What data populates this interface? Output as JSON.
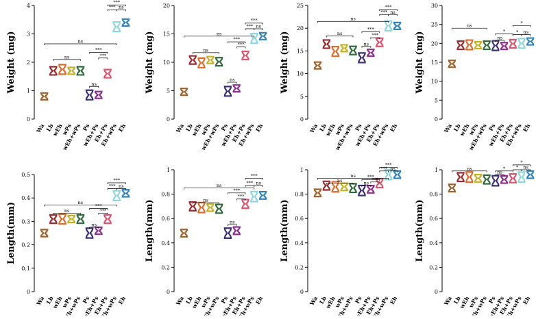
{
  "categories": [
    "Wa",
    "Lb",
    "wEh",
    "wPs",
    "wEh+wPs",
    "Ps",
    "wEh+Ps",
    "Eh+Ps",
    "Eh+wPs",
    "Eh"
  ],
  "colors": [
    "#a0622d",
    "#9c2a2e",
    "#e06b2a",
    "#c8b11f",
    "#2f6a3b",
    "#3b2f74",
    "#8c2f8c",
    "#e0536c",
    "#8ed7de",
    "#3182bd"
  ],
  "chart_data": [
    {
      "type": "violin",
      "metric": "weight",
      "ylabel": "Weight (mg)",
      "ylim": [
        0,
        4
      ],
      "ticks": [
        0,
        1,
        2,
        3,
        4
      ],
      "values": [
        0.8,
        1.7,
        1.75,
        1.7,
        1.7,
        0.85,
        0.85,
        1.6,
        3.25,
        3.4
      ],
      "annotations": [
        {
          "from": "Wa",
          "to": "Eh+wPs",
          "text": "ns",
          "y": 2.65
        },
        {
          "from": "Lb",
          "to": "wEh+wPs",
          "text": "ns",
          "y": 2.1
        },
        {
          "from": "Ps",
          "to": "wEh+Ps",
          "text": "ns",
          "y": 1.15
        },
        {
          "from": "Ps",
          "to": "Eh+Ps",
          "text": "***",
          "y": 2.35
        },
        {
          "from": "wEh+Ps",
          "to": "Eh+Ps",
          "text": "***",
          "y": 2.15
        },
        {
          "from": "Eh+Ps",
          "to": "Eh+wPs",
          "text": "***",
          "y": 3.85
        },
        {
          "from": "Eh+Ps",
          "to": "Eh",
          "text": "***",
          "y": 4.02
        },
        {
          "from": "Eh+wPs",
          "to": "Eh",
          "text": "ns",
          "y": 3.85
        }
      ]
    },
    {
      "type": "violin",
      "metric": "weight",
      "ylabel": "Weight (mg)",
      "ylim": [
        0,
        20
      ],
      "ticks": [
        0,
        5,
        10,
        15,
        20
      ],
      "values": [
        4.8,
        10.4,
        9.9,
        10.4,
        10.1,
        4.9,
        5.4,
        11.2,
        14.2,
        14.6
      ],
      "annotations": [
        {
          "from": "Wa",
          "to": "Eh+wPs",
          "text": "ns",
          "y": 14.6
        },
        {
          "from": "Lb",
          "to": "wEh+wPs",
          "text": "ns",
          "y": 11.7
        },
        {
          "from": "Ps",
          "to": "wEh+Ps",
          "text": "ns",
          "y": 6.5
        },
        {
          "from": "Ps",
          "to": "Eh+Ps",
          "text": "***",
          "y": 13.6
        },
        {
          "from": "wEh+Ps",
          "to": "Eh+Ps",
          "text": "***",
          "y": 12.7
        },
        {
          "from": "Eh+Ps",
          "to": "Eh+wPs",
          "text": "***",
          "y": 15.9
        },
        {
          "from": "Eh+Ps",
          "to": "Eh",
          "text": "***",
          "y": 16.9
        },
        {
          "from": "Eh+wPs",
          "to": "Eh",
          "text": "ns",
          "y": 15.9
        }
      ]
    },
    {
      "type": "violin",
      "metric": "weight",
      "ylabel": "Weight (mg)",
      "ylim": [
        0,
        25
      ],
      "ticks": [
        0,
        5,
        10,
        15,
        20,
        25
      ],
      "values": [
        11.8,
        16.5,
        14.9,
        15.6,
        15.1,
        13.5,
        14.6,
        16.9,
        20.5,
        20.5
      ],
      "annotations": [
        {
          "from": "Wa",
          "to": "Eh+wPs",
          "text": "ns",
          "y": 21.5
        },
        {
          "from": "Lb",
          "to": "wEh+wPs",
          "text": "ns",
          "y": 18.3
        },
        {
          "from": "Ps",
          "to": "wEh+Ps",
          "text": "ns",
          "y": 16.0
        },
        {
          "from": "Ps",
          "to": "Eh+Ps",
          "text": "***",
          "y": 19.2
        },
        {
          "from": "wEh+Ps",
          "to": "Eh+Ps",
          "text": "***",
          "y": 17.9
        },
        {
          "from": "Eh+Ps",
          "to": "Eh+wPs",
          "text": "***",
          "y": 23.0
        },
        {
          "from": "Eh+Ps",
          "to": "Eh",
          "text": "***",
          "y": 24.1
        },
        {
          "from": "Eh+wPs",
          "to": "Eh",
          "text": "ns",
          "y": 23.0
        }
      ]
    },
    {
      "type": "violin",
      "metric": "weight",
      "ylabel": "Weight (mg)",
      "ylim": [
        0,
        30
      ],
      "ticks": [
        0,
        5,
        10,
        15,
        20,
        25,
        30
      ],
      "values": [
        14.6,
        19.5,
        19.6,
        19.5,
        19.5,
        19.4,
        19.3,
        19.9,
        20.0,
        20.5
      ],
      "annotations": [
        {
          "from": "Wa",
          "to": "wEh+wPs",
          "text": "ns",
          "y": 24.0
        },
        {
          "from": "Ps",
          "to": "wEh+Ps",
          "text": "ns",
          "y": 20.8
        },
        {
          "from": "Ps",
          "to": "Eh+Ps",
          "text": "*",
          "y": 22.5
        },
        {
          "from": "Eh+Ps",
          "to": "Eh+wPs",
          "text": "*",
          "y": 22.3
        },
        {
          "from": "Eh+Ps",
          "to": "Eh",
          "text": "*",
          "y": 24.7
        },
        {
          "from": "Eh+wPs",
          "to": "Eh",
          "text": "ns",
          "y": 22.3
        }
      ]
    },
    {
      "type": "violin",
      "metric": "length",
      "ylabel": "Length(mm)",
      "ylim": [
        0,
        0.5
      ],
      "ticks": [
        0,
        0.1,
        0.2,
        0.3,
        0.4,
        0.5
      ],
      "values": [
        0.25,
        0.31,
        0.31,
        0.31,
        0.31,
        0.25,
        0.26,
        0.31,
        0.41,
        0.42
      ],
      "annotations": [
        {
          "from": "Wa",
          "to": "Eh+wPs",
          "text": "ns",
          "y": 0.37
        },
        {
          "from": "Lb",
          "to": "wEh+wPs",
          "text": "ns",
          "y": 0.335
        },
        {
          "from": "Ps",
          "to": "wEh+Ps",
          "text": "ns",
          "y": 0.275
        },
        {
          "from": "Ps",
          "to": "Eh+Ps",
          "text": "***",
          "y": 0.355
        },
        {
          "from": "wEh+Ps",
          "to": "Eh+Ps",
          "text": "***",
          "y": 0.335
        },
        {
          "from": "Eh+Ps",
          "to": "Eh+wPs",
          "text": "***",
          "y": 0.44
        },
        {
          "from": "Eh+Ps",
          "to": "Eh",
          "text": "***",
          "y": 0.465
        },
        {
          "from": "Eh+wPs",
          "to": "Eh",
          "text": "ns",
          "y": 0.44
        }
      ]
    },
    {
      "type": "violin",
      "metric": "length",
      "ylabel": "Length(mm)",
      "ylim": [
        0,
        1.0
      ],
      "ticks": [
        0,
        0.2,
        0.4,
        0.6,
        0.8,
        1.0
      ],
      "values": [
        0.48,
        0.7,
        0.69,
        0.69,
        0.68,
        0.48,
        0.5,
        0.72,
        0.78,
        0.79
      ],
      "annotations": [
        {
          "from": "Wa",
          "to": "Eh+wPs",
          "text": "ns",
          "y": 0.85
        },
        {
          "from": "Lb",
          "to": "wEh+wPs",
          "text": "ns",
          "y": 0.73
        },
        {
          "from": "Ps",
          "to": "wEh+Ps",
          "text": "ns",
          "y": 0.55
        },
        {
          "from": "Ps",
          "to": "Eh+Ps",
          "text": "***",
          "y": 0.81
        },
        {
          "from": "wEh+Ps",
          "to": "Eh+Ps",
          "text": "***",
          "y": 0.76
        },
        {
          "from": "Eh+Ps",
          "to": "Eh+wPs",
          "text": "***",
          "y": 0.87
        },
        {
          "from": "Eh+Ps",
          "to": "Eh",
          "text": "***",
          "y": 0.93
        },
        {
          "from": "Eh+wPs",
          "to": "Eh",
          "text": "ns",
          "y": 0.87
        }
      ]
    },
    {
      "type": "violin",
      "metric": "length",
      "ylabel": "Length(mm)",
      "ylim": [
        0,
        1.0
      ],
      "ticks": [
        0,
        0.2,
        0.4,
        0.6,
        0.8,
        1.0
      ],
      "values": [
        0.81,
        0.87,
        0.86,
        0.86,
        0.85,
        0.83,
        0.84,
        0.89,
        0.96,
        0.96
      ],
      "annotations": [
        {
          "from": "Wa",
          "to": "Eh+wPs",
          "text": "ns",
          "y": 0.93
        },
        {
          "from": "Lb",
          "to": "wEh+wPs",
          "text": "ns",
          "y": 0.89
        },
        {
          "from": "Ps",
          "to": "wEh+Ps",
          "text": "ns",
          "y": 0.87
        },
        {
          "from": "Ps",
          "to": "Eh+Ps",
          "text": "***",
          "y": 0.92
        },
        {
          "from": "wEh+Ps",
          "to": "Eh+Ps",
          "text": "***",
          "y": 0.9
        },
        {
          "from": "Eh+Ps",
          "to": "Eh+wPs",
          "text": "***",
          "y": 0.99
        },
        {
          "from": "Eh+Ps",
          "to": "Eh",
          "text": "***",
          "y": 1.02
        },
        {
          "from": "Eh+wPs",
          "to": "Eh",
          "text": "ns",
          "y": 0.99
        }
      ]
    },
    {
      "type": "violin",
      "metric": "length",
      "ylabel": "Length(mm)",
      "ylim": [
        0,
        1.0
      ],
      "ticks": [
        0,
        0.2,
        0.4,
        0.6,
        0.8,
        1.0
      ],
      "values": [
        0.85,
        0.94,
        0.94,
        0.93,
        0.92,
        0.91,
        0.92,
        0.93,
        0.94,
        0.96
      ],
      "annotations": [
        {
          "from": "Wa",
          "to": "wEh+wPs",
          "text": "ns",
          "y": 0.99
        },
        {
          "from": "Ps",
          "to": "wEh+Ps",
          "text": "ns",
          "y": 0.96
        },
        {
          "from": "Ps",
          "to": "Eh+Ps",
          "text": "*",
          "y": 0.99
        },
        {
          "from": "Eh+Ps",
          "to": "Eh+wPs",
          "text": "*",
          "y": 1.0
        },
        {
          "from": "Eh+Ps",
          "to": "Eh",
          "text": "*",
          "y": 1.04
        },
        {
          "from": "Eh+wPs",
          "to": "Eh",
          "text": "ns",
          "y": 1.0
        }
      ]
    }
  ]
}
